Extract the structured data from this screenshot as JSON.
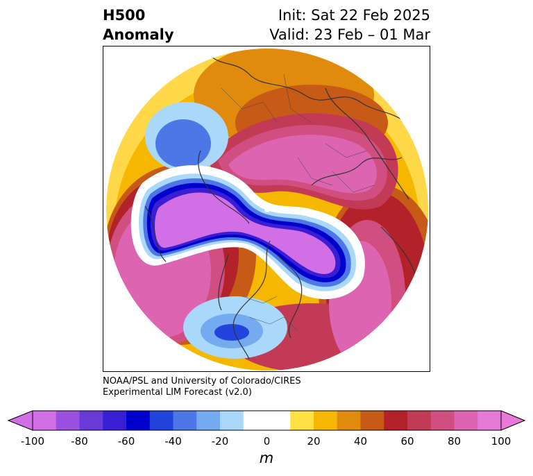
{
  "header": {
    "title_line1": "H500",
    "title_line2": "Anomaly",
    "init_label": "Init: Sat 22 Feb 2025",
    "valid_label": "Valid: 23 Feb – 01 Mar"
  },
  "credit": {
    "line1": "NOAA/PSL and University of Colorado/CIRES",
    "line2": "Experimental LIM Forecast (v2.0)"
  },
  "colorbar": {
    "unit": "m",
    "ticks": [
      "-100",
      "-80",
      "-60",
      "-40",
      "-20",
      "0",
      "20",
      "40",
      "60",
      "80",
      "100"
    ],
    "colors": [
      "#d26ee6",
      "#9b50e0",
      "#6a3ad8",
      "#3a1ed4",
      "#0000cc",
      "#2244dd",
      "#4d77e6",
      "#73aaf0",
      "#aad8fa",
      "#ffffff",
      "#ffffff",
      "#ffe045",
      "#f5b700",
      "#e08a0e",
      "#c85a18",
      "#b3212a",
      "#c23a55",
      "#d04f80",
      "#dc64b0",
      "#e77ad6"
    ]
  },
  "map": {
    "projection": "north-polar-stereographic",
    "field": "500 hPa geopotential height anomaly"
  }
}
